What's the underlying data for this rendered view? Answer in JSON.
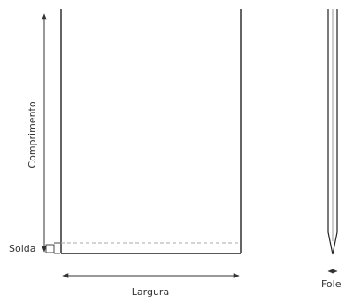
{
  "labels": {
    "length": "Comprimento",
    "seal": "Solda",
    "width": "Largura",
    "gusset": "Fole"
  },
  "colors": {
    "line": "#222222",
    "dimension": "#333333",
    "seal_line": "#aaaaaa"
  }
}
